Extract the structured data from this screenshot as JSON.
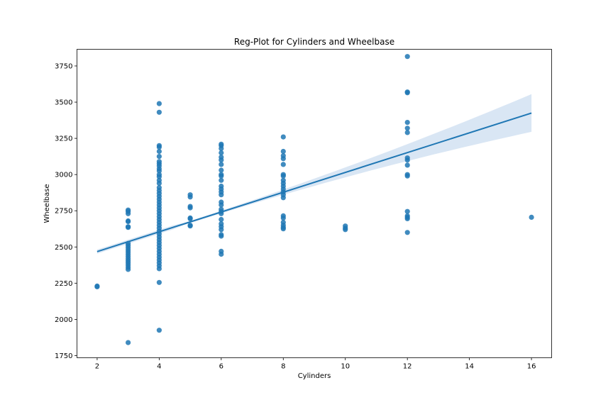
{
  "chart_data": {
    "type": "scatter",
    "title": "Reg-Plot for Cylinders and Wheelbase",
    "xlabel": "Cylinders",
    "ylabel": "Wheelbase",
    "xlim": [
      1.35,
      16.65
    ],
    "ylim": [
      1735,
      3865
    ],
    "xticks": [
      2,
      4,
      6,
      8,
      10,
      12,
      14,
      16
    ],
    "yticks": [
      1750,
      2000,
      2250,
      2500,
      2750,
      3000,
      3250,
      3500,
      3750
    ],
    "grid": false,
    "legend": "none",
    "colors": {
      "points": "#1f77b4",
      "regression_line": "#1f77b4",
      "confidence_band": "#c9dcef"
    },
    "points": [
      [
        2,
        2225
      ],
      [
        2,
        2230
      ],
      [
        3,
        1840
      ],
      [
        3,
        2345
      ],
      [
        3,
        2360
      ],
      [
        3,
        2375
      ],
      [
        3,
        2390
      ],
      [
        3,
        2405
      ],
      [
        3,
        2420
      ],
      [
        3,
        2435
      ],
      [
        3,
        2450
      ],
      [
        3,
        2465
      ],
      [
        3,
        2480
      ],
      [
        3,
        2495
      ],
      [
        3,
        2510
      ],
      [
        3,
        2525
      ],
      [
        3,
        2635
      ],
      [
        3,
        2640
      ],
      [
        3,
        2675
      ],
      [
        3,
        2680
      ],
      [
        3,
        2730
      ],
      [
        3,
        2745
      ],
      [
        3,
        2755
      ],
      [
        4,
        1925
      ],
      [
        4,
        2255
      ],
      [
        4,
        2350
      ],
      [
        4,
        2370
      ],
      [
        4,
        2390
      ],
      [
        4,
        2410
      ],
      [
        4,
        2430
      ],
      [
        4,
        2450
      ],
      [
        4,
        2470
      ],
      [
        4,
        2490
      ],
      [
        4,
        2510
      ],
      [
        4,
        2530
      ],
      [
        4,
        2550
      ],
      [
        4,
        2570
      ],
      [
        4,
        2590
      ],
      [
        4,
        2610
      ],
      [
        4,
        2630
      ],
      [
        4,
        2650
      ],
      [
        4,
        2670
      ],
      [
        4,
        2690
      ],
      [
        4,
        2710
      ],
      [
        4,
        2730
      ],
      [
        4,
        2750
      ],
      [
        4,
        2770
      ],
      [
        4,
        2790
      ],
      [
        4,
        2810
      ],
      [
        4,
        2830
      ],
      [
        4,
        2850
      ],
      [
        4,
        2870
      ],
      [
        4,
        2890
      ],
      [
        4,
        2910
      ],
      [
        4,
        2940
      ],
      [
        4,
        2960
      ],
      [
        4,
        2985
      ],
      [
        4,
        3000
      ],
      [
        4,
        3025
      ],
      [
        4,
        3040
      ],
      [
        4,
        3060
      ],
      [
        4,
        3075
      ],
      [
        4,
        3090
      ],
      [
        4,
        3125
      ],
      [
        4,
        3160
      ],
      [
        4,
        3190
      ],
      [
        4,
        3200
      ],
      [
        4,
        3430
      ],
      [
        4,
        3490
      ],
      [
        5,
        2645
      ],
      [
        5,
        2650
      ],
      [
        5,
        2695
      ],
      [
        5,
        2700
      ],
      [
        5,
        2770
      ],
      [
        5,
        2780
      ],
      [
        5,
        2845
      ],
      [
        5,
        2860
      ],
      [
        6,
        2450
      ],
      [
        6,
        2470
      ],
      [
        6,
        2575
      ],
      [
        6,
        2585
      ],
      [
        6,
        2620
      ],
      [
        6,
        2640
      ],
      [
        6,
        2660
      ],
      [
        6,
        2690
      ],
      [
        6,
        2730
      ],
      [
        6,
        2745
      ],
      [
        6,
        2760
      ],
      [
        6,
        2790
      ],
      [
        6,
        2810
      ],
      [
        6,
        2860
      ],
      [
        6,
        2880
      ],
      [
        6,
        2900
      ],
      [
        6,
        2920
      ],
      [
        6,
        2960
      ],
      [
        6,
        2990
      ],
      [
        6,
        3000
      ],
      [
        6,
        3030
      ],
      [
        6,
        3070
      ],
      [
        6,
        3100
      ],
      [
        6,
        3120
      ],
      [
        6,
        3150
      ],
      [
        6,
        3180
      ],
      [
        6,
        3200
      ],
      [
        6,
        3210
      ],
      [
        8,
        2625
      ],
      [
        8,
        2635
      ],
      [
        8,
        2650
      ],
      [
        8,
        2670
      ],
      [
        8,
        2700
      ],
      [
        8,
        2715
      ],
      [
        8,
        2840
      ],
      [
        8,
        2860
      ],
      [
        8,
        2880
      ],
      [
        8,
        2900
      ],
      [
        8,
        2920
      ],
      [
        8,
        2940
      ],
      [
        8,
        2960
      ],
      [
        8,
        2990
      ],
      [
        8,
        3000
      ],
      [
        8,
        3070
      ],
      [
        8,
        3110
      ],
      [
        8,
        3130
      ],
      [
        8,
        3160
      ],
      [
        8,
        3260
      ],
      [
        10,
        2620
      ],
      [
        10,
        2630
      ],
      [
        10,
        2645
      ],
      [
        12,
        2600
      ],
      [
        12,
        2695
      ],
      [
        12,
        2705
      ],
      [
        12,
        2715
      ],
      [
        12,
        2745
      ],
      [
        12,
        2990
      ],
      [
        12,
        3000
      ],
      [
        12,
        3065
      ],
      [
        12,
        3100
      ],
      [
        12,
        3115
      ],
      [
        12,
        3290
      ],
      [
        12,
        3320
      ],
      [
        12,
        3360
      ],
      [
        12,
        3565
      ],
      [
        12,
        3570
      ],
      [
        12,
        3815
      ],
      [
        16,
        2705
      ]
    ],
    "regression": {
      "x": [
        2,
        16
      ],
      "y": [
        2468,
        3425
      ],
      "ci_lower": [
        2455,
        3300
      ],
      "ci_upper": [
        2480,
        3560
      ]
    }
  }
}
